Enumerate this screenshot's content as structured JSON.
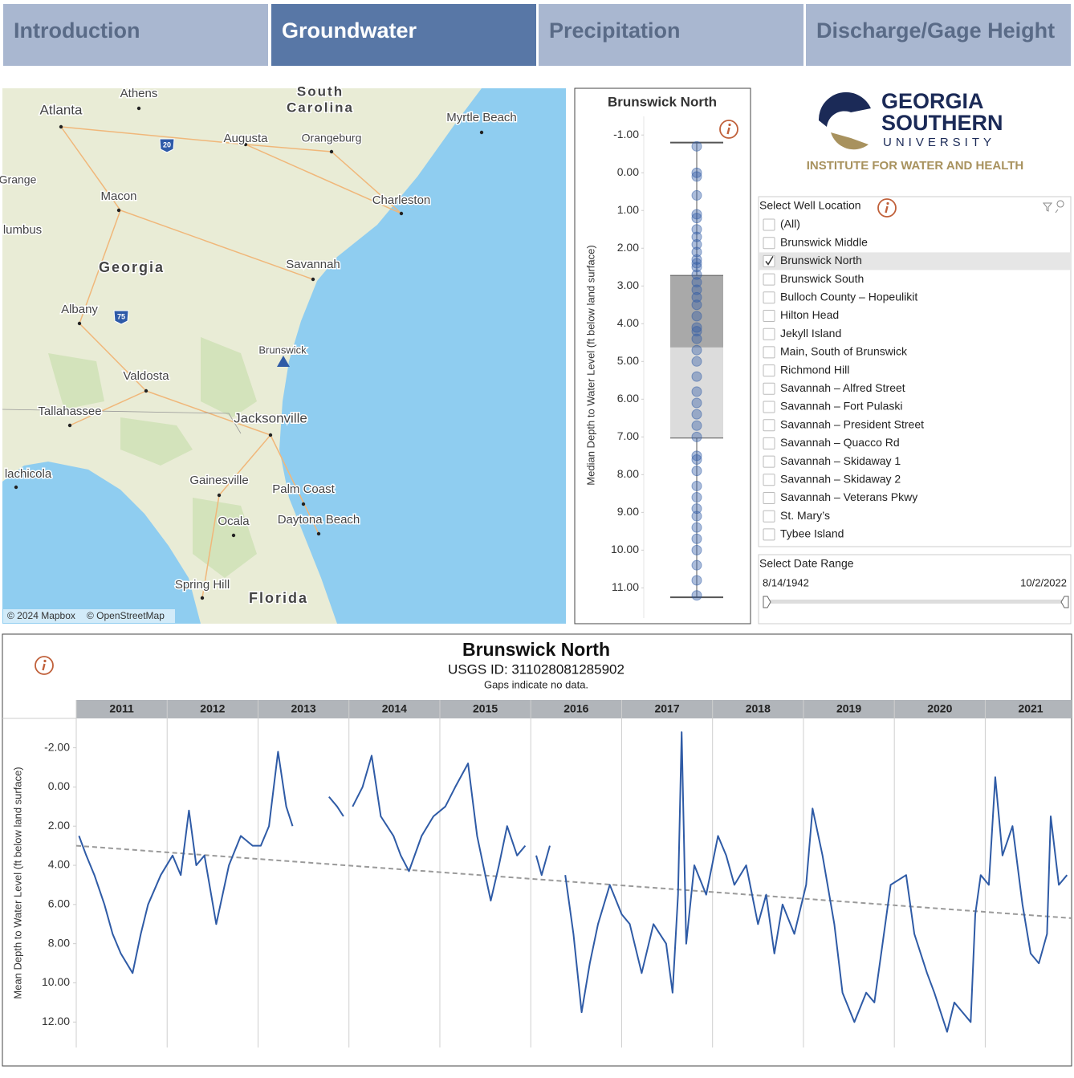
{
  "tabs": [
    {
      "label": "Introduction",
      "active": false
    },
    {
      "label": "Groundwater",
      "active": true
    },
    {
      "label": "Precipitation",
      "active": false
    },
    {
      "label": "Discharge/Gage Height",
      "active": false
    }
  ],
  "map": {
    "labels": [
      "Athens",
      "South",
      "Carolina",
      "Atlanta",
      "Myrtle Beach",
      "Augusta",
      "Orangeburg",
      "Grange",
      "Macon",
      "Charleston",
      "lumbus",
      "Georgia",
      "Savannah",
      "Albany",
      "Brunswick",
      "Valdosta",
      "Tallahassee",
      "Jacksonville",
      "lachicola",
      "Gainesville",
      "Palm Coast",
      "Ocala",
      "Daytona Beach",
      "Spring Hill",
      "Florida"
    ],
    "shields": [
      "20",
      "75"
    ],
    "attribution": [
      "© 2024 Mapbox",
      "© OpenStreetMap"
    ]
  },
  "logo": {
    "line1": "GEORGIA",
    "line2": "SOUTHERN",
    "line3": "UNIVERSITY",
    "tagline": "INSTITUTE FOR WATER AND HEALTH"
  },
  "well_filter": {
    "title": "Select Well Location",
    "items": [
      {
        "label": "(All)",
        "checked": false
      },
      {
        "label": "Brunswick Middle",
        "checked": false
      },
      {
        "label": "Brunswick North",
        "checked": true
      },
      {
        "label": "Brunswick South",
        "checked": false
      },
      {
        "label": "Bulloch County – Hopeulikit",
        "checked": false
      },
      {
        "label": "Hilton Head",
        "checked": false
      },
      {
        "label": "Jekyll Island",
        "checked": false
      },
      {
        "label": "Main, South of Brunswick",
        "checked": false
      },
      {
        "label": "Richmond Hill",
        "checked": false
      },
      {
        "label": "Savannah – Alfred Street",
        "checked": false
      },
      {
        "label": "Savannah – Fort Pulaski",
        "checked": false
      },
      {
        "label": "Savannah – President Street",
        "checked": false
      },
      {
        "label": "Savannah – Quacco Rd",
        "checked": false
      },
      {
        "label": "Savannah – Skidaway 1",
        "checked": false
      },
      {
        "label": "Savannah – Skidaway 2",
        "checked": false
      },
      {
        "label": "Savannah – Veterans Pkwy",
        "checked": false
      },
      {
        "label": "St. Mary’s",
        "checked": false
      },
      {
        "label": "Tybee Island",
        "checked": false
      }
    ]
  },
  "date_range": {
    "title": "Select Date Range",
    "start": "8/14/1942",
    "end": "10/2/2022"
  },
  "chart_data": [
    {
      "type": "box",
      "title": "Brunswick North",
      "ylabel": "Median Depth to Water Level (ft below land surface)",
      "ylim": [
        -1.6,
        11.8
      ],
      "y_inverted": true,
      "yticks": [
        {
          "value": -1,
          "label": "-1.00"
        },
        {
          "value": 0,
          "label": "0.00"
        },
        {
          "value": 1,
          "label": "1.00"
        },
        {
          "value": 2,
          "label": "2.00"
        },
        {
          "value": 3,
          "label": "3.00"
        },
        {
          "value": 4,
          "label": "4.00"
        },
        {
          "value": 5,
          "label": "5.00"
        },
        {
          "value": 6,
          "label": "6.00"
        },
        {
          "value": 7,
          "label": "7.00"
        },
        {
          "value": 8,
          "label": "8.00"
        },
        {
          "value": 9,
          "label": "9.00"
        },
        {
          "value": 10,
          "label": "10.00"
        },
        {
          "value": 11,
          "label": "11.00"
        }
      ],
      "whisker_low": -0.8,
      "q1": 2.72,
      "median": 4.63,
      "q3": 7.03,
      "whisker_high": 11.25,
      "color": "#2f5ba6",
      "points": [
        -0.7,
        0,
        0.1,
        0.6,
        1.1,
        1.2,
        1.5,
        1.7,
        1.9,
        2.1,
        2.3,
        2.4,
        2.5,
        2.7,
        2.9,
        3.1,
        3.3,
        3.5,
        3.8,
        4.1,
        4.2,
        4.4,
        4.7,
        5.0,
        5.4,
        5.8,
        6.1,
        6.4,
        6.7,
        7.0,
        7.5,
        7.6,
        7.9,
        8.3,
        8.6,
        8.9,
        9.1,
        9.4,
        9.7,
        10.0,
        10.4,
        10.8,
        11.2
      ]
    },
    {
      "type": "line",
      "title": "Brunswick North",
      "subtitle": "USGS ID: 311028081285902",
      "note": "Gaps indicate no data.",
      "ylabel": "Mean Depth to Water Level (ft below land surface)",
      "xlim": [
        2011,
        2021.95
      ],
      "xticks": [
        2011,
        2012,
        2013,
        2014,
        2015,
        2016,
        2017,
        2018,
        2019,
        2020,
        2021
      ],
      "ylim": [
        -3.5,
        13.3
      ],
      "y_inverted": true,
      "yticks": [
        {
          "value": -2,
          "label": "-2.00"
        },
        {
          "value": 0,
          "label": "0.00"
        },
        {
          "value": 2,
          "label": "2.00"
        },
        {
          "value": 4,
          "label": "4.00"
        },
        {
          "value": 6,
          "label": "6.00"
        },
        {
          "value": 8,
          "label": "8.00"
        },
        {
          "value": 10,
          "label": "10.00"
        },
        {
          "value": 12,
          "label": "12.00"
        }
      ],
      "series": [
        {
          "color": "#2f5ba6",
          "x": [
            2011.03,
            2011.11,
            2011.2,
            2011.31,
            2011.4,
            2011.49,
            2011.62,
            2011.71,
            2011.79,
            2011.93,
            2012.06,
            2012.15,
            2012.24,
            2012.32,
            2012.41,
            2012.54,
            2012.68,
            2012.81,
            2012.94,
            2013.03,
            2013.12,
            2013.22,
            2013.31,
            2013.38,
            2013.55,
            2013.78,
            2013.87,
            2013.94,
            2014.0,
            2014.04,
            2014.15,
            2014.25,
            2014.35,
            2014.49,
            2014.57,
            2014.66,
            2014.8,
            2014.93,
            2015.06,
            2015.17,
            2015.31,
            2015.41,
            2015.5,
            2015.56,
            2015.65,
            2015.74,
            2015.85,
            2015.94,
            2015.98,
            2016.06,
            2016.12,
            2016.21,
            2016.3,
            2016.38,
            2016.47,
            2016.56,
            2016.65,
            2016.74,
            2016.87,
            2017.0,
            2017.09,
            2017.22,
            2017.35,
            2017.49,
            2017.56,
            2017.62,
            2017.66,
            2017.71,
            2017.8,
            2017.93,
            2018.06,
            2018.15,
            2018.24,
            2018.37,
            2018.5,
            2018.59,
            2018.68,
            2018.77,
            2018.9,
            2019.03,
            2019.1,
            2019.21,
            2019.34,
            2019.43,
            2019.56,
            2019.69,
            2019.78,
            2019.87,
            2019.96,
            2020.13,
            2020.22,
            2020.36,
            2020.44,
            2020.58,
            2020.66,
            2020.75,
            2020.84,
            2020.89,
            2020.95,
            2021.04,
            2021.11,
            2021.19,
            2021.3,
            2021.41,
            2021.5,
            2021.59,
            2021.68,
            2021.72,
            2021.81,
            2021.9
          ],
          "values": [
            2.5,
            3.5,
            4.5,
            6,
            7.5,
            8.5,
            9.5,
            7.5,
            6,
            4.5,
            3.5,
            4.5,
            1.2,
            4,
            3.5,
            7,
            4,
            2.5,
            3,
            3,
            2,
            -1.8,
            1,
            2,
            null,
            0.5,
            1,
            1.5,
            null,
            1,
            0,
            -1.6,
            1.5,
            2.5,
            3.5,
            4.3,
            2.5,
            1.5,
            1,
            0,
            -1.2,
            2.5,
            4.5,
            5.8,
            4,
            2,
            3.5,
            3,
            null,
            3.5,
            4.5,
            3,
            null,
            4.5,
            7.5,
            11.5,
            9,
            7,
            5,
            6.5,
            7,
            9.5,
            7,
            8,
            10.5,
            5.5,
            -2.8,
            8,
            4,
            5.5,
            2.5,
            3.5,
            5,
            4,
            7,
            5.5,
            8.5,
            6,
            7.5,
            5,
            1.1,
            3.5,
            7,
            10.5,
            12,
            10.5,
            11,
            8,
            5,
            4.5,
            7.5,
            9.5,
            10.5,
            12.5,
            11,
            11.5,
            12,
            6.5,
            4.5,
            5,
            -0.5,
            3.5,
            2,
            6,
            8.5,
            9,
            7.5,
            1.5,
            5,
            4.5
          ]
        }
      ],
      "trend": {
        "color": "#9a9a9a",
        "x": [
          2011,
          2021.95
        ],
        "values": [
          3.0,
          6.7
        ]
      }
    }
  ]
}
